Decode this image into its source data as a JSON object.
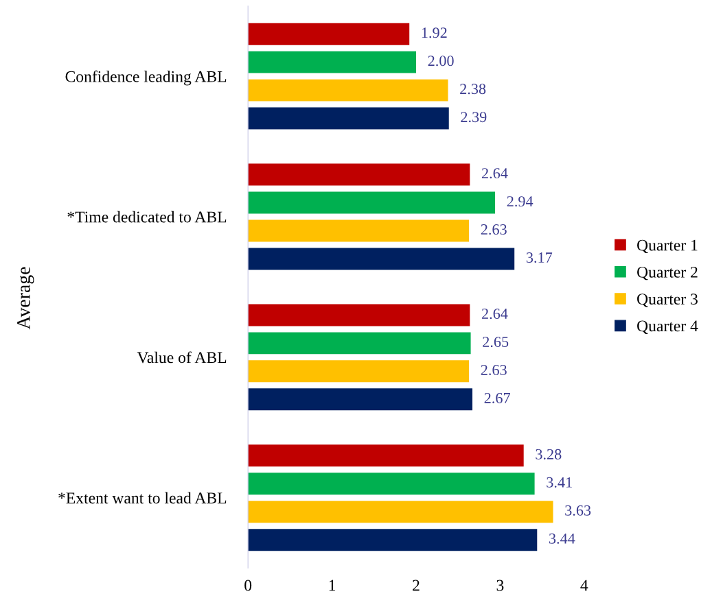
{
  "chart_data": {
    "type": "bar",
    "orientation": "horizontal",
    "ylabel": "Average",
    "categories": [
      "Confidence leading ABL",
      "*Time dedicated to ABL",
      "Value of ABL",
      "*Extent want to lead ABL"
    ],
    "series": [
      {
        "name": "Quarter 1",
        "color": "#c00000",
        "values": [
          1.92,
          2.64,
          2.64,
          3.28
        ],
        "value_labels": [
          "1.92",
          "2.64",
          "2.64",
          "3.28"
        ]
      },
      {
        "name": "Quarter 2",
        "color": "#00b050",
        "values": [
          2.0,
          2.94,
          2.65,
          3.41
        ],
        "value_labels": [
          "2.00",
          "2.94",
          "2.65",
          "3.41"
        ]
      },
      {
        "name": "Quarter 3",
        "color": "#ffc000",
        "values": [
          2.38,
          2.63,
          2.63,
          3.63
        ],
        "value_labels": [
          "2.38",
          "2.63",
          "2.63",
          "3.63"
        ]
      },
      {
        "name": "Quarter 4",
        "color": "#002060",
        "values": [
          2.39,
          3.17,
          2.67,
          3.44
        ],
        "value_labels": [
          "2.39",
          "3.17",
          "2.67",
          "3.44"
        ]
      }
    ],
    "xlim": [
      0,
      4
    ],
    "xticks": [
      0,
      1,
      2,
      3,
      4
    ],
    "grid": false,
    "legend": "right"
  }
}
